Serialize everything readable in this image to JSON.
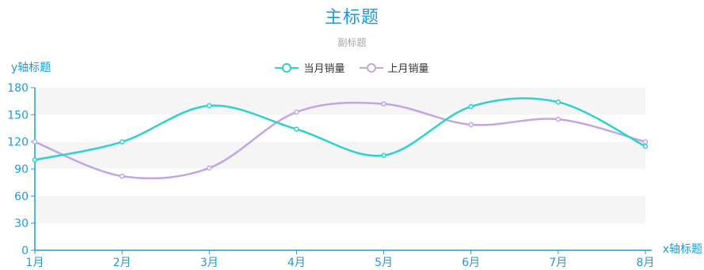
{
  "chart_data": {
    "type": "line",
    "title": "主标题",
    "subtitle": "副标题",
    "xlabel": "x轴标题",
    "ylabel": "y轴标题",
    "categories": [
      "1月",
      "2月",
      "3月",
      "4月",
      "5月",
      "6月",
      "7月",
      "8月"
    ],
    "ylim": [
      0,
      180
    ],
    "yticks": [
      "0",
      "30",
      "60",
      "90",
      "120",
      "150",
      "180"
    ],
    "grid": "alternating horizontal bands",
    "legend_position": "top-center",
    "smooth": true,
    "series": [
      {
        "name": "当月销量",
        "values": [
          100,
          120,
          160,
          134,
          105,
          159,
          164,
          115
        ],
        "color": "#2ed1cb"
      },
      {
        "name": "上月销量",
        "values": [
          120,
          82,
          91,
          153,
          162,
          139,
          145,
          120
        ],
        "color": "#c2a5e6"
      }
    ],
    "colors": {
      "axis": "#1e9bd7",
      "title": "#1e9bd7",
      "subtitle": "#a6a6a6",
      "band": "#f5f5f5"
    }
  }
}
